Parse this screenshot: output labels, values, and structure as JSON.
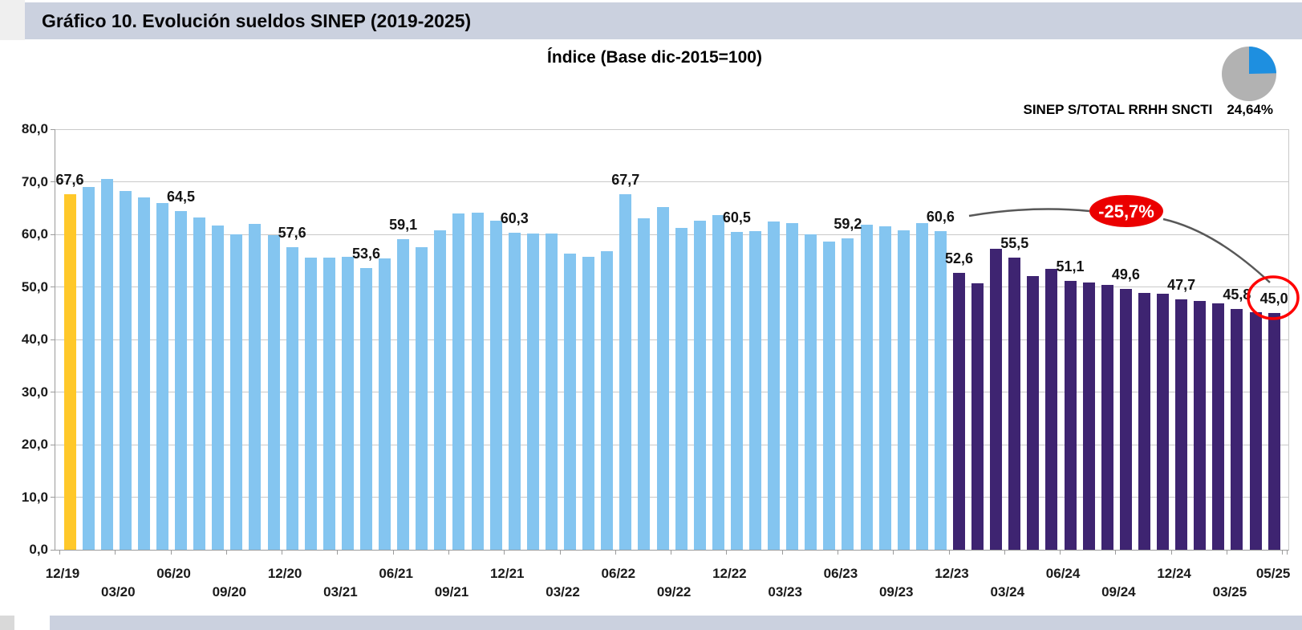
{
  "window": {
    "title": "Gráfico 10. Evolución sueldos SINEP (2019-2025)"
  },
  "pie": {
    "label": "SINEP S/TOTAL RRHH SNCTI",
    "value": "24,64%",
    "pct": 24.64,
    "colors": {
      "slice": "#1e8fe0",
      "rest": "#b2b2b2"
    }
  },
  "annotations": {
    "badge": "-25,7%",
    "badge_fill": "#eb0000",
    "circled_value": "45,0",
    "circle_stroke": "#ff0000",
    "connector_color": "#585858"
  },
  "chart_data": {
    "type": "bar",
    "title": "Índice (Base dic-2015=100)",
    "ylabel": "",
    "xlabel": "",
    "ylim": [
      0,
      80
    ],
    "grid": "horizontal",
    "y_tick_labels": [
      "80,0",
      "70,0",
      "60,0",
      "50,0",
      "40,0",
      "30,0",
      "20,0",
      "10,0",
      "0,0"
    ],
    "months": [
      "12/19",
      "01/20",
      "02/20",
      "03/20",
      "04/20",
      "05/20",
      "06/20",
      "07/20",
      "08/20",
      "09/20",
      "10/20",
      "11/20",
      "12/20",
      "01/21",
      "02/21",
      "03/21",
      "04/21",
      "05/21",
      "06/21",
      "07/21",
      "08/21",
      "09/21",
      "10/21",
      "11/21",
      "12/21",
      "01/22",
      "02/22",
      "03/22",
      "04/22",
      "05/22",
      "06/22",
      "07/22",
      "08/22",
      "09/22",
      "10/22",
      "11/22",
      "12/22",
      "01/23",
      "02/23",
      "03/23",
      "04/23",
      "05/23",
      "06/23",
      "07/23",
      "08/23",
      "09/23",
      "10/23",
      "11/23",
      "12/23",
      "01/24",
      "02/24",
      "03/24",
      "04/24",
      "05/24",
      "06/24",
      "07/24",
      "08/24",
      "09/24",
      "10/24",
      "11/24",
      "12/24",
      "01/25",
      "02/25",
      "03/25",
      "04/25",
      "05/25"
    ],
    "values": [
      67.6,
      69.0,
      70.5,
      68.2,
      67.1,
      65.9,
      64.5,
      63.2,
      61.7,
      60.0,
      62.0,
      59.8,
      57.6,
      55.5,
      55.5,
      55.7,
      53.6,
      55.4,
      59.1,
      57.5,
      60.7,
      64.0,
      64.1,
      62.6,
      60.3,
      60.1,
      60.2,
      56.3,
      55.8,
      56.8,
      67.7,
      63.1,
      65.2,
      61.2,
      62.6,
      63.7,
      60.5,
      60.6,
      62.4,
      62.2,
      60.0,
      58.6,
      59.2,
      61.8,
      61.6,
      60.8,
      62.1,
      60.6,
      52.6,
      50.7,
      57.3,
      55.5,
      52.1,
      53.5,
      51.1,
      50.9,
      50.4,
      49.6,
      48.9,
      48.7,
      47.7,
      47.3,
      46.9,
      45.8,
      45.2,
      45.0
    ],
    "point_labels": {
      "0": "67,6",
      "6": "64,5",
      "12": "57,6",
      "16": "53,6",
      "18": "59,1",
      "24": "60,3",
      "30": "67,7",
      "36": "60,5",
      "42": "59,2",
      "47": "60,6",
      "48": "52,6",
      "51": "55,5",
      "54": "51,1",
      "57": "49,6",
      "60": "47,7",
      "63": "45,8",
      "65": "45,0"
    },
    "colors": {
      "first_bar": "#ffc82a",
      "blue_series": "#84c5f0",
      "purple_series": "#3e2471"
    },
    "purple_start_index": 48,
    "x_quarter_labels": [
      {
        "t": "12/19",
        "m": 0,
        "r": 1
      },
      {
        "t": "03/20",
        "m": 3,
        "r": 2
      },
      {
        "t": "06/20",
        "m": 6,
        "r": 1
      },
      {
        "t": "09/20",
        "m": 9,
        "r": 2
      },
      {
        "t": "12/20",
        "m": 12,
        "r": 1
      },
      {
        "t": "03/21",
        "m": 15,
        "r": 2
      },
      {
        "t": "06/21",
        "m": 18,
        "r": 1
      },
      {
        "t": "09/21",
        "m": 21,
        "r": 2
      },
      {
        "t": "12/21",
        "m": 24,
        "r": 1
      },
      {
        "t": "03/22",
        "m": 27,
        "r": 2
      },
      {
        "t": "06/22",
        "m": 30,
        "r": 1
      },
      {
        "t": "09/22",
        "m": 33,
        "r": 2
      },
      {
        "t": "12/22",
        "m": 36,
        "r": 1
      },
      {
        "t": "03/23",
        "m": 39,
        "r": 2
      },
      {
        "t": "06/23",
        "m": 42,
        "r": 1
      },
      {
        "t": "09/23",
        "m": 45,
        "r": 2
      },
      {
        "t": "12/23",
        "m": 48,
        "r": 1
      },
      {
        "t": "03/24",
        "m": 51,
        "r": 2
      },
      {
        "t": "06/24",
        "m": 54,
        "r": 1
      },
      {
        "t": "09/24",
        "m": 57,
        "r": 2
      },
      {
        "t": "12/24",
        "m": 60,
        "r": 1
      },
      {
        "t": "03/25",
        "m": 63,
        "r": 2
      },
      {
        "t": "05/25",
        "m": 65,
        "r": 1
      }
    ]
  }
}
